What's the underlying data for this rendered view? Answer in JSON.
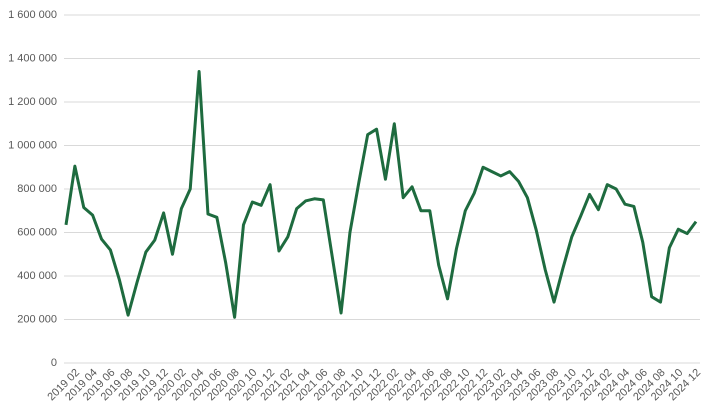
{
  "chart_data": {
    "type": "line",
    "categories": [
      null,
      "2019 02",
      null,
      "2019 04",
      null,
      "2019 06",
      null,
      "2019 08",
      null,
      "2019 10",
      null,
      "2019 12",
      null,
      "2020 02",
      null,
      "2020 04",
      null,
      "2020 06",
      null,
      "2020 08",
      null,
      "2020 10",
      null,
      "2020 12",
      null,
      "2021 02",
      null,
      "2021 04",
      null,
      "2021 06",
      null,
      "2021 08",
      null,
      "2021 10",
      null,
      "2021 12",
      null,
      "2022 02",
      null,
      "2022 04",
      null,
      "2022 06",
      null,
      "2022 08",
      null,
      "2022 10",
      null,
      "2022 12",
      null,
      "2023 02",
      null,
      "2023 04",
      null,
      "2023 06",
      null,
      "2023 08",
      null,
      "2023 10",
      null,
      "2023 12",
      null,
      "2024 02",
      null,
      "2024 04",
      null,
      "2024 06",
      null,
      "2024 08",
      null,
      "2024 10",
      null,
      "2024 12"
    ],
    "values": [
      635000,
      905000,
      715000,
      680000,
      570000,
      520000,
      385000,
      220000,
      370000,
      510000,
      565000,
      690000,
      500000,
      710000,
      800000,
      1340000,
      685000,
      670000,
      460000,
      210000,
      635000,
      740000,
      725000,
      820000,
      515000,
      580000,
      710000,
      745000,
      755000,
      750000,
      490000,
      230000,
      600000,
      830000,
      1050000,
      1075000,
      845000,
      1100000,
      760000,
      810000,
      700000,
      700000,
      450000,
      295000,
      525000,
      700000,
      780000,
      900000,
      880000,
      860000,
      880000,
      835000,
      760000,
      610000,
      430000,
      280000,
      435000,
      580000,
      675000,
      775000,
      705000,
      820000,
      800000,
      730000,
      720000,
      555000,
      305000,
      280000,
      530000,
      615000,
      595000,
      650000
    ],
    "color": "#1e6b3f",
    "ylim": [
      0,
      1600000
    ],
    "yticks": [
      0,
      {
        "value": 200000,
        "label": "200 000"
      },
      {
        "value": 400000,
        "label": "400 000"
      },
      {
        "value": 600000,
        "label": "600 000"
      },
      {
        "value": 800000,
        "label": "800 000"
      },
      {
        "value": 1000000,
        "label": "1 000 000"
      },
      {
        "value": 1200000,
        "label": "1 200 000"
      },
      {
        "value": 1400000,
        "label": "1 400 000"
      },
      {
        "value": 1600000,
        "label": "1 600 000"
      }
    ],
    "grid": true
  }
}
